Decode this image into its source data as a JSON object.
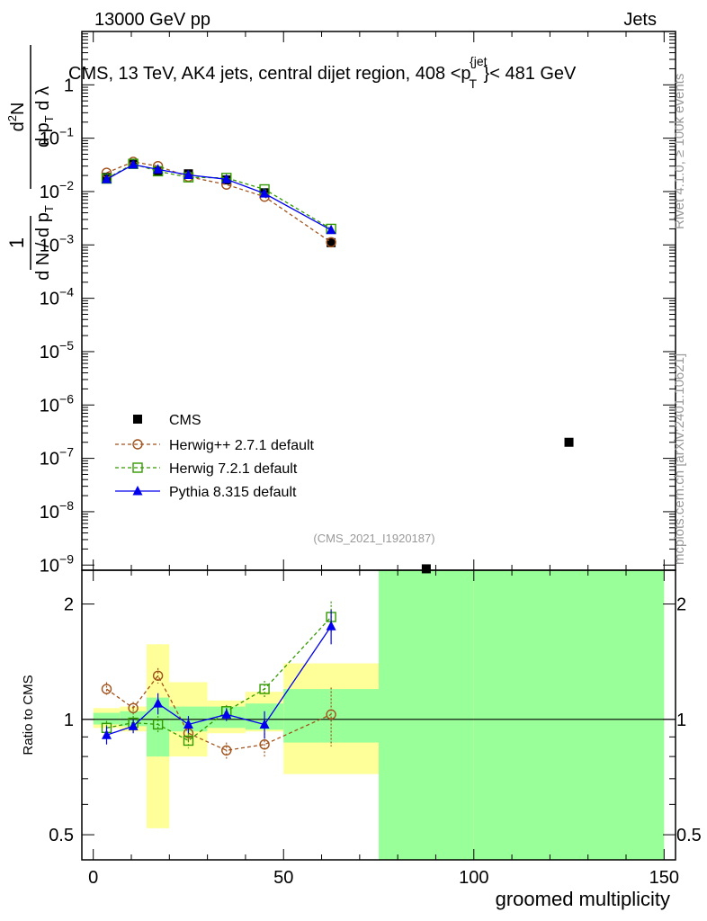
{
  "header": {
    "left": "13000 GeV pp",
    "right": "Jets"
  },
  "title": "CMS, 13 TeV, AK4 jets, central dijet region, 408 <p",
  "title_sub": "T",
  "title_sup": "{jet",
  "title_end": "}< 481 GeV",
  "side_label": "Rivet 4.1.0, ≥ 100k events",
  "side_label2": "mcplots.cern.ch [arXiv:2401.10621]",
  "analysis_id": "(CMS_2021_I1920187)",
  "chart_data": {
    "type": "scatter",
    "main": {
      "ylabel": "1/(dN/dpT) d²N/(dpT dλ)",
      "yscale": "log",
      "ylim": [
        8e-10,
        10
      ],
      "ytick_values": [
        1e-09,
        1e-08,
        1e-07,
        1e-06,
        1e-05,
        0.0001,
        0.001,
        0.01,
        0.1,
        1
      ],
      "ytick_labels": [
        {
          "base": "10",
          "exp": "−9"
        },
        {
          "base": "10",
          "exp": "−8"
        },
        {
          "base": "10",
          "exp": "−7"
        },
        {
          "base": "10",
          "exp": "−6"
        },
        {
          "base": "10",
          "exp": "−5"
        },
        {
          "base": "10",
          "exp": "−4"
        },
        {
          "base": "10",
          "exp": "−3"
        },
        {
          "base": "10",
          "exp": "−2"
        },
        {
          "base": "10",
          "exp": "−1"
        },
        {
          "base": "1",
          "exp": ""
        }
      ]
    },
    "ratio": {
      "ylabel": "Ratio to CMS",
      "yscale": "log",
      "ylim": [
        0.43,
        2.45
      ],
      "ytick_values": [
        0.5,
        1,
        2
      ],
      "ytick_labels": [
        "0.5",
        "1",
        "2"
      ]
    },
    "xlabel": "groomed multiplicity",
    "xlim": [
      -3,
      153
    ],
    "xtick_values": [
      0,
      50,
      100,
      150
    ],
    "xtick_labels": [
      "0",
      "50",
      "100",
      "150"
    ],
    "bins": [
      [
        0,
        7
      ],
      [
        7,
        14
      ],
      [
        14,
        20
      ],
      [
        20,
        30
      ],
      [
        30,
        40
      ],
      [
        40,
        50
      ],
      [
        50,
        75
      ],
      [
        75,
        100
      ],
      [
        100,
        150
      ]
    ],
    "cms": {
      "name": "CMS",
      "x": [
        3.5,
        10.5,
        17,
        25,
        35,
        45,
        62.5,
        87.5,
        125
      ],
      "y": [
        0.0185,
        0.034,
        0.0245,
        0.0215,
        0.0165,
        0.0095,
        0.0011,
        8.5e-10,
        2e-07
      ],
      "stat_band": [
        [
          0.97,
          1.04
        ],
        [
          0.96,
          1.05
        ],
        [
          0.8,
          1.14
        ],
        [
          0.93,
          1.08
        ],
        [
          0.95,
          1.08
        ],
        [
          0.94,
          1.1
        ],
        [
          0.87,
          1.2
        ],
        [
          0.42,
          2.5
        ],
        [
          0.42,
          2.5
        ]
      ],
      "total_band": [
        [
          0.95,
          1.07
        ],
        [
          0.93,
          1.08
        ],
        [
          0.52,
          1.57
        ],
        [
          0.8,
          1.25
        ],
        [
          0.92,
          1.12
        ],
        [
          0.93,
          1.18
        ],
        [
          0.72,
          1.4
        ],
        [
          0.42,
          2.5
        ],
        [
          0.42,
          2.5
        ]
      ]
    },
    "series": [
      {
        "name": "Herwig++ 2.7.1 default",
        "color": "#a0521b",
        "marker": "open-circle",
        "x": [
          3.5,
          10.5,
          17,
          25,
          35,
          45,
          62.5
        ],
        "y": [
          0.0225,
          0.036,
          0.03,
          0.019,
          0.0135,
          0.008,
          0.00112
        ],
        "ratio": [
          1.2,
          1.07,
          1.3,
          0.92,
          0.83,
          0.86,
          1.03
        ],
        "ratio_err": [
          0.05,
          0.04,
          0.06,
          0.05,
          0.04,
          0.06,
          0.18
        ]
      },
      {
        "name": "Herwig 7.2.1 default",
        "color": "#339900",
        "marker": "open-square",
        "x": [
          3.5,
          10.5,
          17,
          25,
          35,
          45,
          62.5
        ],
        "y": [
          0.0175,
          0.033,
          0.024,
          0.0185,
          0.018,
          0.011,
          0.002
        ],
        "ratio": [
          0.95,
          0.98,
          0.97,
          0.88,
          1.05,
          1.2,
          1.85
        ],
        "ratio_err": [
          0.04,
          0.04,
          0.05,
          0.04,
          0.04,
          0.06,
          0.18
        ]
      },
      {
        "name": "Pythia 8.315 default",
        "color": "#0000ee",
        "marker": "filled-triangle",
        "x": [
          3.5,
          10.5,
          17,
          25,
          35,
          45,
          62.5
        ],
        "y": [
          0.017,
          0.032,
          0.026,
          0.0205,
          0.017,
          0.0092,
          0.0019
        ],
        "ratio": [
          0.91,
          0.96,
          1.1,
          0.97,
          1.03,
          0.97,
          1.75
        ],
        "ratio_err": [
          0.05,
          0.04,
          0.07,
          0.05,
          0.04,
          0.08,
          0.18
        ]
      }
    ]
  }
}
